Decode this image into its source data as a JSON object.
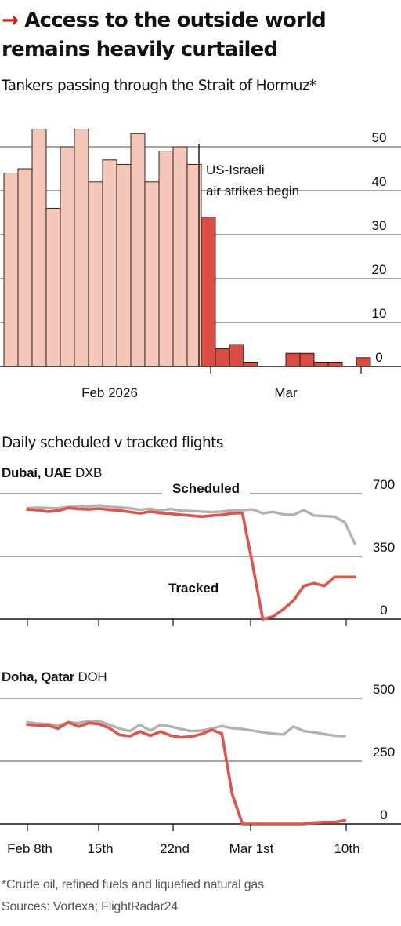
{
  "headline": {
    "arrow": "→",
    "line1": "Access to the outside world",
    "line2": "remains heavily curtailed"
  },
  "colors": {
    "accent": "#e3120b",
    "bar_before": "#f4c7b8",
    "bar_after": "#db4c43",
    "tracked": "#e0534b",
    "scheduled": "#b2b2b2",
    "grid": "#121212"
  },
  "chart_data": [
    {
      "type": "bar",
      "title": "Tankers passing through the Strait of Hormuz*",
      "x_tick_labels": [
        "Feb 2026",
        "Mar"
      ],
      "y_ticks": [
        0,
        10,
        20,
        30,
        40,
        50
      ],
      "ylim": [
        0,
        55
      ],
      "values": [
        44,
        45,
        54,
        36,
        50,
        54,
        42,
        47,
        46,
        53,
        42,
        49,
        50,
        46,
        34,
        4,
        5,
        1,
        0,
        0,
        3,
        3,
        1,
        1,
        0,
        2
      ],
      "event_index": 14,
      "annotation": {
        "line1": "US-Israeli",
        "line2": "air strikes begin"
      },
      "grid": true,
      "y_axis_position": "right"
    },
    {
      "type": "line",
      "title": "Daily scheduled v tracked flights",
      "panels": [
        {
          "name_bold": "Dubai, UAE",
          "code": "DXB",
          "y_ticks": [
            0,
            350,
            700
          ],
          "ylim": [
            0,
            700
          ],
          "x": [
            0,
            29
          ],
          "series": [
            {
              "name": "Scheduled",
              "x_start": 0,
              "values": [
                620,
                622,
                620,
                618,
                626,
                632,
                628,
                635,
                626,
                624,
                618,
                610,
                616,
                605,
                615,
                605,
                603,
                600,
                597,
                600,
                606,
                608,
                612,
                590,
                598,
                584,
                582,
                608,
                578,
                575,
                572,
                540,
                420
              ]
            },
            {
              "name": "Tracked",
              "x_start": 0,
              "values": [
                612,
                608,
                600,
                605,
                620,
                615,
                612,
                617,
                610,
                606,
                598,
                590,
                600,
                592,
                588,
                582,
                577,
                572,
                577,
                582,
                590,
                592,
                305,
                0,
                15,
                55,
                105,
                185,
                200,
                185,
                235,
                235,
                235
              ]
            }
          ]
        },
        {
          "name_bold": "Doha, Qatar",
          "code": "DOH",
          "y_ticks": [
            0,
            250,
            500
          ],
          "ylim": [
            0,
            500
          ],
          "x_tick_labels": [
            "Feb 8th",
            "15th",
            "22nd",
            "Mar 1st",
            "10th"
          ],
          "series": [
            {
              "name": "Scheduled",
              "x_start": 0,
              "values": [
                405,
                400,
                398,
                392,
                405,
                402,
                410,
                410,
                395,
                380,
                370,
                395,
                372,
                395,
                388,
                378,
                370,
                372,
                380,
                390,
                382,
                378,
                372,
                365,
                360,
                356,
                388,
                370,
                365,
                358,
                352,
                350
              ]
            },
            {
              "name": "Tracked",
              "x_start": 0,
              "values": [
                396,
                393,
                393,
                380,
                405,
                388,
                402,
                398,
                382,
                355,
                350,
                368,
                352,
                368,
                352,
                345,
                348,
                358,
                375,
                360,
                120,
                0,
                0,
                0,
                0,
                0,
                0,
                0,
                5,
                7,
                7,
                14
              ]
            }
          ]
        }
      ]
    }
  ],
  "footnote": "*Crude oil, refined fuels and liquefied natural gas",
  "sources": "Sources: Vortexa; FlightRadar24"
}
